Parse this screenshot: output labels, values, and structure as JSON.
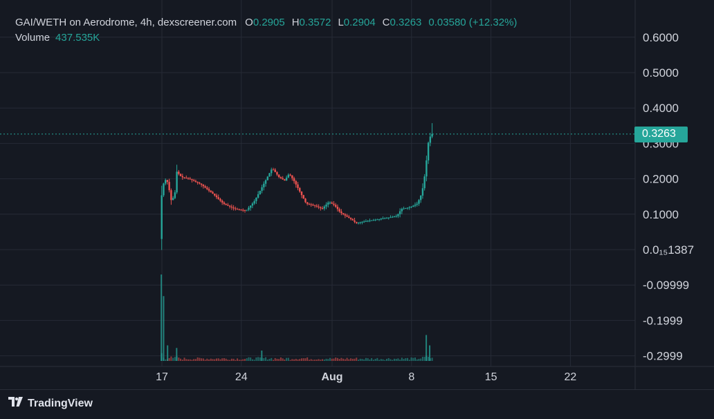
{
  "legend": {
    "symbol": "GAI/WETH on Aerodrome, 4h, dexscreener.com",
    "open_label": "O",
    "open": "0.2905",
    "high_label": "H",
    "high": "0.3572",
    "low_label": "L",
    "low": "0.2904",
    "close_label": "C",
    "close": "0.3263",
    "change": "0.03580 (+12.32%)",
    "volume_label": "Volume",
    "volume": "437.535K"
  },
  "last_price": "0.3263",
  "brand": {
    "name": "TradingView",
    "icon": "tradingview-logo-icon"
  },
  "colors": {
    "up": "#26a69a",
    "down": "#ef5350",
    "background": "#151922",
    "grid": "#262b36",
    "text": "#d1d4dc"
  },
  "chart_data": {
    "type": "candlestick",
    "interval": "4h",
    "y_ticks": [
      "0.6000",
      "0.5000",
      "0.4000",
      "0.3000",
      "0.2000",
      "0.1000",
      "0.0₁₅1387",
      "-0.09999",
      "-0.1999",
      "-0.2999"
    ],
    "y_tick_values": [
      0.6,
      0.5,
      0.4,
      0.3,
      0.2,
      0.1,
      0.0,
      -0.1,
      -0.2,
      -0.3
    ],
    "x_ticks": [
      "17",
      "24",
      "Aug",
      "8",
      "15",
      "22"
    ],
    "x_tick_days": [
      17,
      24,
      32,
      39,
      46,
      53
    ],
    "ylim": [
      -0.33,
      0.64
    ],
    "grid": true,
    "last_price_line": 0.3263,
    "price_path": [
      {
        "day": 16.9,
        "price": 0.03
      },
      {
        "day": 17.0,
        "price": 0.14
      },
      {
        "day": 17.3,
        "price": 0.2
      },
      {
        "day": 17.6,
        "price": 0.19
      },
      {
        "day": 17.9,
        "price": 0.14
      },
      {
        "day": 18.2,
        "price": 0.15
      },
      {
        "day": 18.4,
        "price": 0.22
      },
      {
        "day": 18.8,
        "price": 0.205
      },
      {
        "day": 19.5,
        "price": 0.2
      },
      {
        "day": 20.5,
        "price": 0.185
      },
      {
        "day": 21.5,
        "price": 0.16
      },
      {
        "day": 22.5,
        "price": 0.13
      },
      {
        "day": 23.5,
        "price": 0.115
      },
      {
        "day": 24.5,
        "price": 0.11
      },
      {
        "day": 25.2,
        "price": 0.135
      },
      {
        "day": 25.8,
        "price": 0.17
      },
      {
        "day": 26.3,
        "price": 0.2
      },
      {
        "day": 26.8,
        "price": 0.23
      },
      {
        "day": 27.4,
        "price": 0.205
      },
      {
        "day": 27.9,
        "price": 0.195
      },
      {
        "day": 28.3,
        "price": 0.215
      },
      {
        "day": 28.8,
        "price": 0.19
      },
      {
        "day": 29.3,
        "price": 0.16
      },
      {
        "day": 29.8,
        "price": 0.13
      },
      {
        "day": 30.5,
        "price": 0.125
      },
      {
        "day": 31.2,
        "price": 0.115
      },
      {
        "day": 31.8,
        "price": 0.135
      },
      {
        "day": 32.3,
        "price": 0.125
      },
      {
        "day": 32.8,
        "price": 0.105
      },
      {
        "day": 33.3,
        "price": 0.095
      },
      {
        "day": 33.8,
        "price": 0.085
      },
      {
        "day": 34.2,
        "price": 0.075
      },
      {
        "day": 35.0,
        "price": 0.08
      },
      {
        "day": 36.0,
        "price": 0.085
      },
      {
        "day": 37.0,
        "price": 0.09
      },
      {
        "day": 37.8,
        "price": 0.095
      },
      {
        "day": 38.2,
        "price": 0.115
      },
      {
        "day": 39.0,
        "price": 0.12
      },
      {
        "day": 39.6,
        "price": 0.13
      },
      {
        "day": 40.0,
        "price": 0.16
      },
      {
        "day": 40.3,
        "price": 0.22
      },
      {
        "day": 40.55,
        "price": 0.3
      },
      {
        "day": 40.8,
        "price": 0.3263
      }
    ],
    "last_high": 0.3572,
    "volume_spikes": [
      {
        "day": 16.95,
        "volume": 1.0
      },
      {
        "day": 17.15,
        "volume": 0.75
      },
      {
        "day": 17.5,
        "volume": 0.18
      },
      {
        "day": 18.3,
        "volume": 0.15
      },
      {
        "day": 25.8,
        "volume": 0.12
      },
      {
        "day": 40.3,
        "volume": 0.3
      },
      {
        "day": 40.6,
        "volume": 0.18
      }
    ]
  }
}
